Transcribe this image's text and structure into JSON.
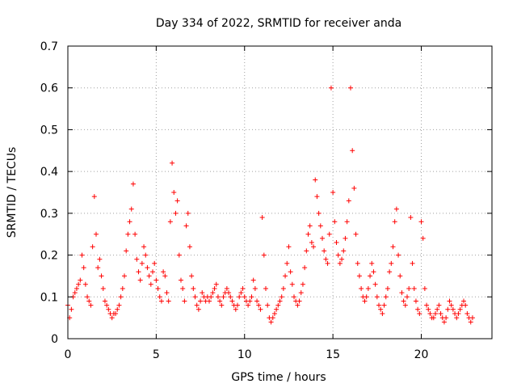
{
  "chart_data": {
    "type": "scatter",
    "title": "Day 334 of 2022, SRMTID for receiver anda",
    "xlabel": "GPS time / hours",
    "ylabel": "SRMTID / TECUs",
    "xlim": [
      0,
      24
    ],
    "ylim": [
      0,
      0.7
    ],
    "x_ticks": [
      0,
      5,
      10,
      15,
      20
    ],
    "y_ticks": [
      0,
      0.1,
      0.2,
      0.3,
      0.4,
      0.5,
      0.6,
      0.7
    ],
    "x_tick_labels": [
      "0",
      "5",
      "10",
      "15",
      "20"
    ],
    "y_tick_labels": [
      "0",
      "0.1",
      "0.2",
      "0.3",
      "0.4",
      "0.5",
      "0.6",
      "0.7"
    ],
    "grid": true,
    "marker": "+",
    "series": [
      {
        "name": "SRMTID",
        "color": "#ff0000",
        "x": [
          0.0,
          0.1,
          0.2,
          0.3,
          0.4,
          0.5,
          0.6,
          0.7,
          0.8,
          0.9,
          1.0,
          1.1,
          1.2,
          1.3,
          1.4,
          1.5,
          1.6,
          1.7,
          1.8,
          1.9,
          2.0,
          2.1,
          2.2,
          2.3,
          2.4,
          2.5,
          2.6,
          2.7,
          2.8,
          2.9,
          3.0,
          3.1,
          3.2,
          3.3,
          3.4,
          3.5,
          3.6,
          3.7,
          3.8,
          3.9,
          4.0,
          4.1,
          4.2,
          4.3,
          4.4,
          4.5,
          4.6,
          4.7,
          4.8,
          4.9,
          5.0,
          5.1,
          5.2,
          5.3,
          5.4,
          5.5,
          5.6,
          5.7,
          5.8,
          5.9,
          6.0,
          6.1,
          6.2,
          6.3,
          6.4,
          6.5,
          6.6,
          6.7,
          6.8,
          6.9,
          7.0,
          7.1,
          7.2,
          7.3,
          7.4,
          7.5,
          7.6,
          7.7,
          7.8,
          7.9,
          8.0,
          8.1,
          8.2,
          8.3,
          8.4,
          8.5,
          8.6,
          8.7,
          8.8,
          8.9,
          9.0,
          9.1,
          9.2,
          9.3,
          9.4,
          9.5,
          9.6,
          9.7,
          9.8,
          9.9,
          10.0,
          10.1,
          10.2,
          10.3,
          10.4,
          10.5,
          10.6,
          10.7,
          10.8,
          10.9,
          11.0,
          11.1,
          11.2,
          11.3,
          11.4,
          11.5,
          11.6,
          11.7,
          11.8,
          11.9,
          12.0,
          12.1,
          12.2,
          12.3,
          12.4,
          12.5,
          12.6,
          12.7,
          12.8,
          12.9,
          13.0,
          13.1,
          13.2,
          13.3,
          13.4,
          13.5,
          13.6,
          13.7,
          13.8,
          13.9,
          14.0,
          14.1,
          14.2,
          14.3,
          14.4,
          14.5,
          14.6,
          14.7,
          14.8,
          14.9,
          15.0,
          15.1,
          15.2,
          15.3,
          15.4,
          15.5,
          15.6,
          15.7,
          15.8,
          15.9,
          16.0,
          16.1,
          16.2,
          16.3,
          16.4,
          16.5,
          16.6,
          16.7,
          16.8,
          16.9,
          17.0,
          17.1,
          17.2,
          17.3,
          17.4,
          17.5,
          17.6,
          17.7,
          17.8,
          17.9,
          18.0,
          18.1,
          18.2,
          18.3,
          18.4,
          18.5,
          18.6,
          18.7,
          18.8,
          18.9,
          19.0,
          19.1,
          19.2,
          19.3,
          19.4,
          19.5,
          19.6,
          19.7,
          19.8,
          19.9,
          20.0,
          20.1,
          20.2,
          20.3,
          20.4,
          20.5,
          20.6,
          20.7,
          20.8,
          20.9,
          21.0,
          21.1,
          21.2,
          21.3,
          21.4,
          21.5,
          21.6,
          21.7,
          21.8,
          21.9,
          22.0,
          22.1,
          22.2,
          22.3,
          22.4,
          22.5,
          22.6,
          22.7,
          22.8,
          22.9
        ],
        "y": [
          0.08,
          0.05,
          0.07,
          0.1,
          0.11,
          0.12,
          0.13,
          0.14,
          0.2,
          0.17,
          0.13,
          0.1,
          0.09,
          0.08,
          0.22,
          0.34,
          0.25,
          0.17,
          0.19,
          0.15,
          0.12,
          0.09,
          0.08,
          0.07,
          0.06,
          0.05,
          0.06,
          0.06,
          0.07,
          0.08,
          0.1,
          0.12,
          0.15,
          0.21,
          0.25,
          0.28,
          0.31,
          0.37,
          0.25,
          0.19,
          0.16,
          0.14,
          0.18,
          0.22,
          0.2,
          0.17,
          0.15,
          0.13,
          0.16,
          0.18,
          0.14,
          0.12,
          0.1,
          0.09,
          0.16,
          0.15,
          0.11,
          0.09,
          0.28,
          0.42,
          0.35,
          0.3,
          0.33,
          0.2,
          0.14,
          0.12,
          0.09,
          0.27,
          0.3,
          0.22,
          0.15,
          0.12,
          0.1,
          0.08,
          0.07,
          0.09,
          0.11,
          0.1,
          0.09,
          0.1,
          0.09,
          0.1,
          0.11,
          0.12,
          0.13,
          0.1,
          0.09,
          0.08,
          0.1,
          0.11,
          0.12,
          0.11,
          0.1,
          0.09,
          0.08,
          0.07,
          0.08,
          0.1,
          0.11,
          0.12,
          0.1,
          0.09,
          0.08,
          0.09,
          0.1,
          0.14,
          0.12,
          0.09,
          0.08,
          0.07,
          0.29,
          0.2,
          0.12,
          0.08,
          0.05,
          0.04,
          0.05,
          0.06,
          0.07,
          0.08,
          0.09,
          0.1,
          0.12,
          0.15,
          0.18,
          0.22,
          0.16,
          0.13,
          0.1,
          0.09,
          0.08,
          0.09,
          0.11,
          0.13,
          0.17,
          0.21,
          0.25,
          0.27,
          0.23,
          0.22,
          0.38,
          0.34,
          0.3,
          0.27,
          0.24,
          0.21,
          0.19,
          0.18,
          0.25,
          0.6,
          0.35,
          0.28,
          0.23,
          0.2,
          0.18,
          0.19,
          0.21,
          0.24,
          0.28,
          0.33,
          0.6,
          0.45,
          0.36,
          0.25,
          0.18,
          0.15,
          0.12,
          0.1,
          0.09,
          0.1,
          0.12,
          0.15,
          0.18,
          0.16,
          0.13,
          0.1,
          0.08,
          0.07,
          0.06,
          0.08,
          0.1,
          0.12,
          0.16,
          0.18,
          0.22,
          0.28,
          0.31,
          0.2,
          0.15,
          0.11,
          0.09,
          0.08,
          0.1,
          0.12,
          0.29,
          0.18,
          0.12,
          0.09,
          0.07,
          0.06,
          0.28,
          0.24,
          0.12,
          0.08,
          0.07,
          0.06,
          0.05,
          0.05,
          0.06,
          0.07,
          0.08,
          0.06,
          0.05,
          0.04,
          0.05,
          0.07,
          0.09,
          0.08,
          0.07,
          0.06,
          0.05,
          0.06,
          0.07,
          0.08,
          0.09,
          0.08,
          0.06,
          0.05,
          0.04,
          0.05
        ]
      }
    ]
  }
}
